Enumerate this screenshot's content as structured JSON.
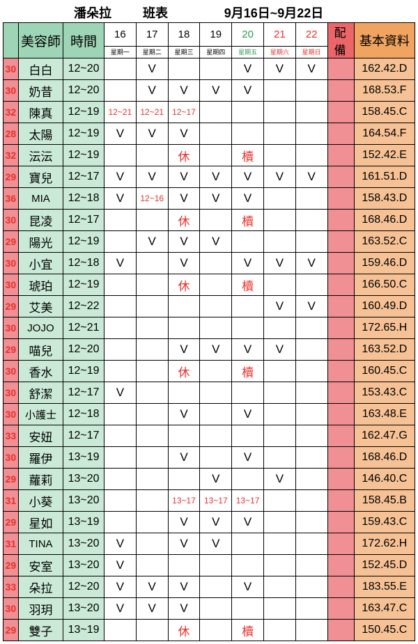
{
  "title": {
    "store": "潘朵拉",
    "label": "班表",
    "range": "9月16日~9月22日"
  },
  "header": {
    "name": "美容師",
    "time": "時間",
    "beer": "配 備",
    "info": "基本資料",
    "days": [
      {
        "num": "16",
        "dow": "星期一",
        "cls": "blk"
      },
      {
        "num": "17",
        "dow": "星期二",
        "cls": "blk"
      },
      {
        "num": "18",
        "dow": "星期三",
        "cls": "blk"
      },
      {
        "num": "19",
        "dow": "星期四",
        "cls": "blk"
      },
      {
        "num": "20",
        "dow": "星期五",
        "cls": "grn"
      },
      {
        "num": "21",
        "dow": "星期六",
        "cls": "red"
      },
      {
        "num": "22",
        "dow": "星期日",
        "cls": "red"
      }
    ]
  },
  "rows": [
    {
      "id": "30",
      "name": "白白",
      "time": "12~20",
      "d": [
        "",
        "V",
        "",
        "",
        "V",
        "V",
        "V"
      ],
      "info": "162.42.D"
    },
    {
      "id": "30",
      "name": "奶昔",
      "time": "12~20",
      "d": [
        "",
        "V",
        "V",
        "V",
        "V",
        "",
        ""
      ],
      "info": "168.53.F"
    },
    {
      "id": "32",
      "name": "陳真",
      "time": "12~19",
      "d": [
        "12~21",
        "12~21",
        "12~17",
        "",
        "",
        "",
        ""
      ],
      "cls": [
        "red sm",
        "red sm",
        "red sm",
        "",
        "",
        "",
        ""
      ],
      "info": "158.45.C"
    },
    {
      "id": "28",
      "name": "太陽",
      "time": "12~19",
      "d": [
        "V",
        "V",
        "V",
        "",
        "",
        "",
        ""
      ],
      "info": "164.54.F"
    },
    {
      "id": "32",
      "name": "沄沄",
      "time": "12~19",
      "d": [
        "",
        "",
        "休",
        "",
        "櫝",
        "",
        ""
      ],
      "cls": [
        "",
        "",
        "red",
        "",
        "red",
        "",
        ""
      ],
      "info": "152.42.E"
    },
    {
      "id": "29",
      "name": "寶兒",
      "time": "12~17",
      "d": [
        "V",
        "V",
        "V",
        "V",
        "V",
        "V",
        "V"
      ],
      "info": "161.51.D"
    },
    {
      "id": "36",
      "name": "MIA",
      "time": "12~18",
      "d": [
        "V",
        "12~16",
        "V",
        "V",
        "V",
        "",
        ""
      ],
      "cls": [
        "",
        "red sm",
        "",
        "",
        "",
        "",
        ""
      ],
      "info": "158.43.D"
    },
    {
      "id": "30",
      "name": "昆凌",
      "time": "12~17",
      "d": [
        "",
        "",
        "休",
        "",
        "櫝",
        "",
        ""
      ],
      "cls": [
        "",
        "",
        "red",
        "",
        "red",
        "",
        ""
      ],
      "info": "168.46.D"
    },
    {
      "id": "29",
      "name": "陽光",
      "time": "12~19",
      "d": [
        "",
        "V",
        "V",
        "V",
        "",
        "",
        ""
      ],
      "info": "163.52.C"
    },
    {
      "id": "30",
      "name": "小宜",
      "time": "12~18",
      "d": [
        "V",
        "",
        "V",
        "",
        "V",
        "V",
        "V"
      ],
      "info": "159.46.D"
    },
    {
      "id": "30",
      "name": "琥珀",
      "time": "12~19",
      "d": [
        "",
        "",
        "休",
        "",
        "櫝",
        "",
        ""
      ],
      "cls": [
        "",
        "",
        "red",
        "",
        "red",
        "",
        ""
      ],
      "info": "166.50.C"
    },
    {
      "id": "29",
      "name": "艾美",
      "time": "12~22",
      "d": [
        "",
        "",
        "",
        "",
        "",
        "V",
        "V"
      ],
      "info": "160.49.D"
    },
    {
      "id": "30",
      "name": "JOJO",
      "time": "12~21",
      "d": [
        "",
        "",
        "",
        "",
        "",
        "",
        ""
      ],
      "info": "172.65.H"
    },
    {
      "id": "29",
      "name": "喵兒",
      "time": "12~20",
      "d": [
        "",
        "",
        "V",
        "V",
        "V",
        "V",
        ""
      ],
      "info": "163.52.D"
    },
    {
      "id": "30",
      "name": "香水",
      "time": "12~19",
      "d": [
        "",
        "",
        "休",
        "",
        "櫝",
        "",
        ""
      ],
      "cls": [
        "",
        "",
        "red",
        "",
        "red",
        "",
        ""
      ],
      "info": "160.45.C"
    },
    {
      "id": "30",
      "name": "舒潔",
      "time": "12~17",
      "d": [
        "V",
        "",
        "",
        "",
        "",
        "",
        ""
      ],
      "info": "153.43.C"
    },
    {
      "id": "30",
      "name": "小護士",
      "time": "12~18",
      "d": [
        "",
        "",
        "V",
        "",
        "V",
        "",
        ""
      ],
      "info": "163.48.E"
    },
    {
      "id": "33",
      "name": "安妞",
      "time": "12~17",
      "d": [
        "",
        "",
        "",
        "",
        "",
        "",
        ""
      ],
      "info": "162.47.G"
    },
    {
      "id": "30",
      "name": "羅伊",
      "time": "13~19",
      "d": [
        "",
        "",
        "V",
        "",
        "V",
        "",
        ""
      ],
      "info": "168.46.D"
    },
    {
      "id": "29",
      "name": "蘿莉",
      "time": "13~20",
      "d": [
        "",
        "",
        "",
        "V",
        "",
        "V",
        ""
      ],
      "info": "146.40.C"
    },
    {
      "id": "31",
      "name": "小葵",
      "time": "13~20",
      "d": [
        "",
        "",
        "13~17",
        "13~17",
        "13~17",
        "",
        ""
      ],
      "cls": [
        "",
        "",
        "red sm",
        "red sm",
        "red sm",
        "",
        ""
      ],
      "info": "158.45.B"
    },
    {
      "id": "29",
      "name": "星如",
      "time": "13~19",
      "d": [
        "",
        "",
        "V",
        "V",
        "V",
        "",
        ""
      ],
      "info": "159.43.C"
    },
    {
      "id": "31",
      "name": "TINA",
      "time": "13~20",
      "d": [
        "V",
        "",
        "V",
        "V",
        "",
        "",
        ""
      ],
      "info": "172.62.H"
    },
    {
      "id": "29",
      "name": "安室",
      "time": "13~20",
      "d": [
        "V",
        "",
        "",
        "",
        "",
        "",
        ""
      ],
      "info": "152.45.D"
    },
    {
      "id": "33",
      "name": "朵拉",
      "time": "12~20",
      "d": [
        "V",
        "V",
        "V",
        "",
        "V",
        "",
        ""
      ],
      "info": "183.55.E"
    },
    {
      "id": "30",
      "name": "羽玥",
      "time": "13~20",
      "d": [
        "V",
        "V",
        "V",
        "",
        "",
        "",
        ""
      ],
      "info": "163.47.C"
    },
    {
      "id": "29",
      "name": "雙子",
      "time": "13~19",
      "d": [
        "",
        "",
        "休",
        "",
        "櫝",
        "",
        ""
      ],
      "cls": [
        "",
        "",
        "red",
        "",
        "red",
        "",
        ""
      ],
      "info": "150.45.C"
    }
  ]
}
